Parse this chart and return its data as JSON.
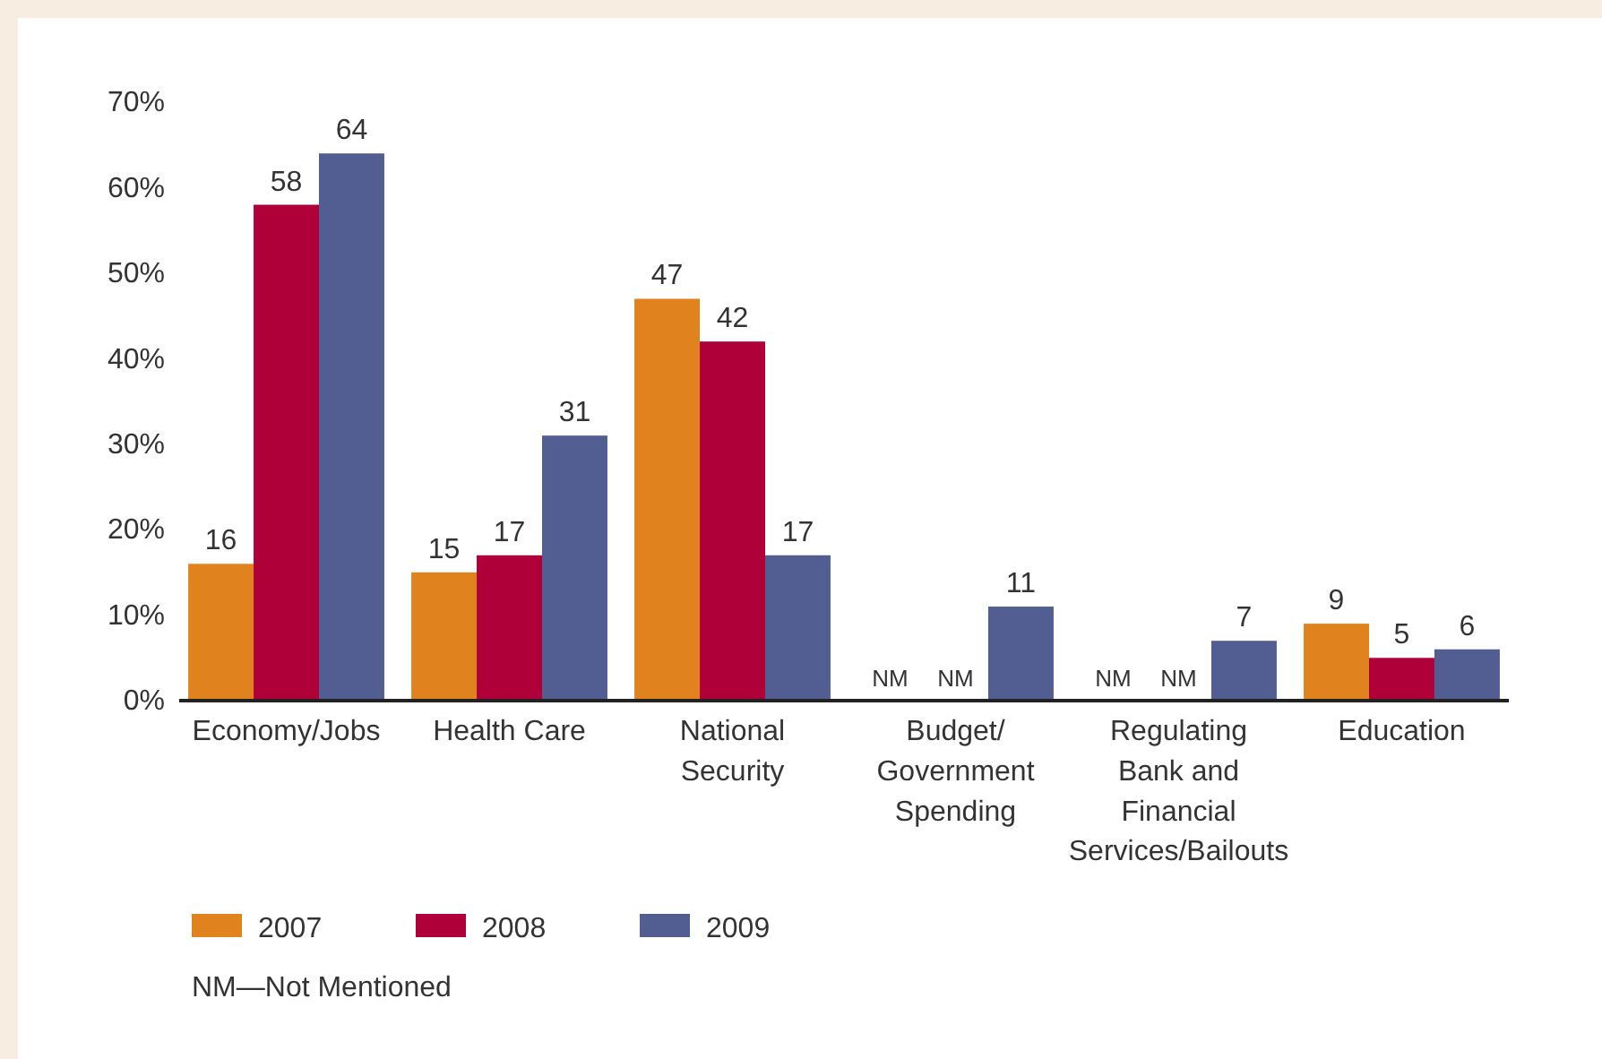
{
  "chart_data": {
    "type": "bar",
    "categories": [
      "Economy/Jobs",
      "Health Care",
      "National Security",
      "Budget/ Government Spending",
      "Regulating Bank and Financial Services/Bailouts",
      "Education"
    ],
    "series": [
      {
        "name": "2007",
        "color": "#e0821e",
        "values": [
          16,
          15,
          47,
          null,
          null,
          9
        ],
        "value_labels": [
          "16",
          "15",
          "47",
          "NM",
          "NM",
          "9"
        ]
      },
      {
        "name": "2008",
        "color": "#b0003a",
        "values": [
          58,
          17,
          42,
          null,
          null,
          5
        ],
        "value_labels": [
          "58",
          "17",
          "42",
          "NM",
          "NM",
          "5"
        ]
      },
      {
        "name": "2009",
        "color": "#525e92",
        "values": [
          64,
          31,
          17,
          11,
          7,
          6
        ],
        "value_labels": [
          "64",
          "31",
          "17",
          "11",
          "7",
          "6"
        ]
      }
    ],
    "ylim": [
      0,
      70
    ],
    "yticks": [
      {
        "value": 0,
        "label": "0%"
      },
      {
        "value": 10,
        "label": "10%"
      },
      {
        "value": 20,
        "label": "20%"
      },
      {
        "value": 30,
        "label": "30%"
      },
      {
        "value": 40,
        "label": "40%"
      },
      {
        "value": 50,
        "label": "50%"
      },
      {
        "value": 60,
        "label": "60%"
      },
      {
        "value": 70,
        "label": "70%"
      }
    ],
    "grid": false,
    "legend": "bottom left",
    "annotations": [
      "NM—Not Mentioned"
    ]
  }
}
